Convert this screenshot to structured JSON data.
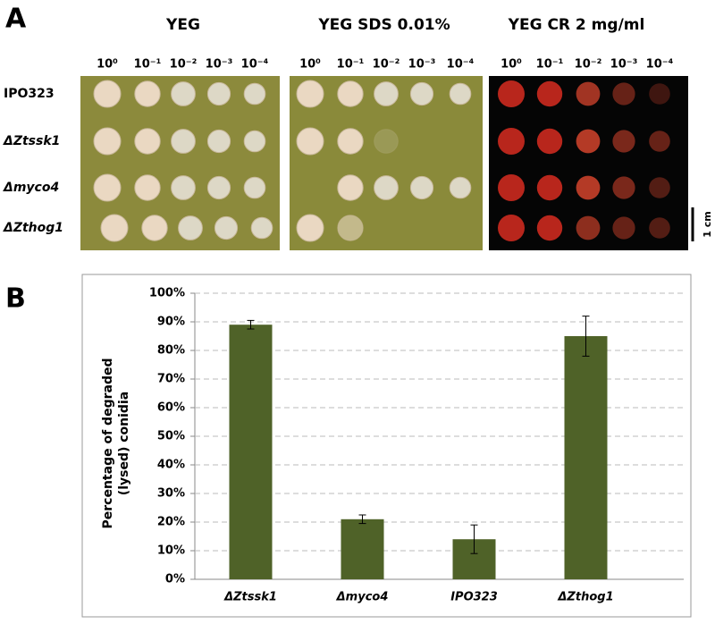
{
  "panel_a": {
    "label": "A",
    "conditions": [
      "YEG",
      "YEG SDS 0.01%",
      "YEG CR 2 mg/ml"
    ],
    "dilutions": [
      "10⁰",
      "10⁻¹",
      "10⁻²",
      "10⁻³",
      "10⁻⁴"
    ],
    "strains": [
      "IPO323",
      "ΔZtssk1",
      "Δmyco4",
      "ΔZthog1"
    ],
    "scale_bar": "1 cm"
  },
  "chart_data": {
    "type": "bar",
    "panel_label": "B",
    "ylabel": "Percentage of degraded (lysed) conidia",
    "categories": [
      "ΔZtssk1",
      "Δmyco4",
      "IPO323",
      "ΔZthog1"
    ],
    "values": [
      89,
      21,
      14,
      85
    ],
    "errors": [
      1.5,
      1.5,
      5,
      7
    ],
    "color": "#4f6228",
    "grid": true,
    "ylim": [
      0,
      100
    ],
    "yticks": [
      {
        "value": 0,
        "label": "0%"
      },
      {
        "value": 10,
        "label": "10%"
      },
      {
        "value": 20,
        "label": "20%"
      },
      {
        "value": 30,
        "label": "30%"
      },
      {
        "value": 40,
        "label": "40%"
      },
      {
        "value": 50,
        "label": "50%"
      },
      {
        "value": 60,
        "label": "60%"
      },
      {
        "value": 70,
        "label": "70%"
      },
      {
        "value": 80,
        "label": "80%"
      },
      {
        "value": 90,
        "label": "90%"
      },
      {
        "value": 100,
        "label": "100%"
      }
    ]
  }
}
